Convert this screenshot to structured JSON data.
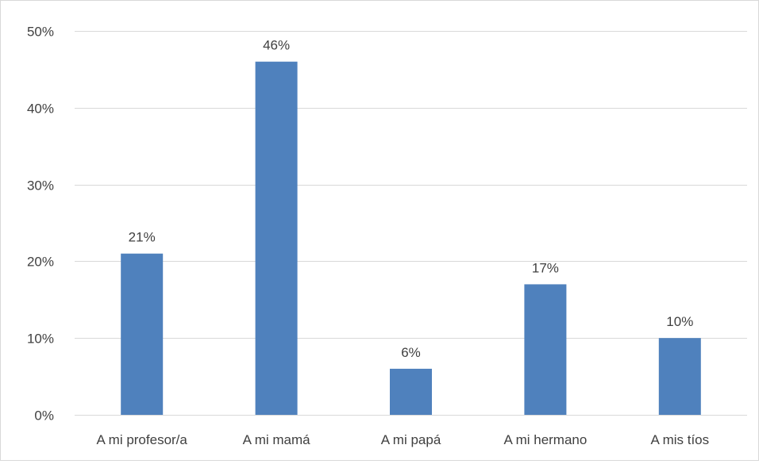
{
  "chart_data": {
    "type": "bar",
    "title": "",
    "xlabel": "",
    "ylabel": "",
    "categories": [
      "A mi profesor/a",
      "A mi mamá",
      "A mi papá",
      "A mi hermano",
      "A mis tíos"
    ],
    "values": [
      21,
      46,
      6,
      17,
      10
    ],
    "data_labels": [
      "21%",
      "46%",
      "6%",
      "17%",
      "10%"
    ],
    "ylim": [
      0,
      50
    ],
    "yticks": [
      0,
      10,
      20,
      30,
      40,
      50
    ],
    "ytick_labels": [
      "0%",
      "10%",
      "20%",
      "30%",
      "40%",
      "50%"
    ],
    "grid": true,
    "legend": "none",
    "bar_color": "#4f81bd",
    "grid_color": "#d9d9d9",
    "text_color": "#404040"
  }
}
